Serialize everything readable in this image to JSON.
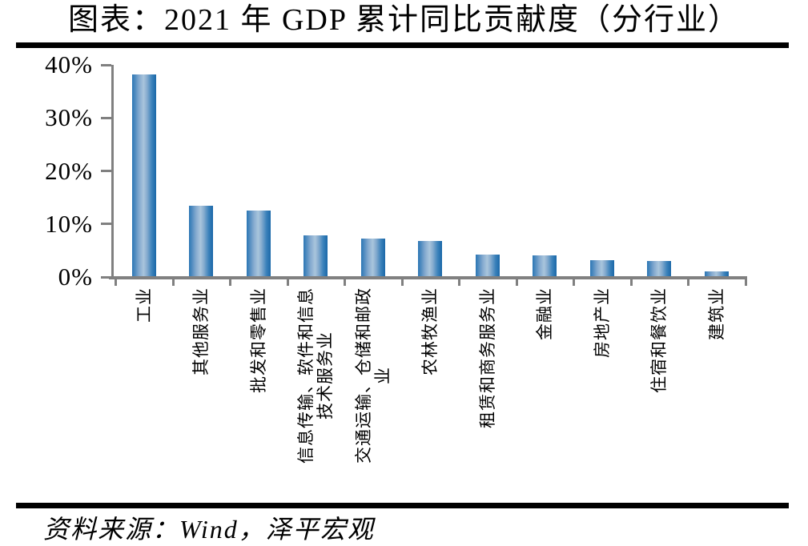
{
  "title": "图表：2021 年 GDP 累计同比贡献度（分行业）",
  "source": "资料来源：Wind，泽平宏观",
  "chart_data": {
    "type": "bar",
    "title": "图表：2021 年 GDP 累计同比贡献度（分行业）",
    "categories": [
      "工业",
      "其他服务业",
      "批发和零售业",
      "信息传输、软件和信息\n技术服务业",
      "交通运输、仓储和邮政\n业",
      "农林牧渔业",
      "租赁和商务服务业",
      "金融业",
      "房地产业",
      "住宿和餐饮业",
      "建筑业"
    ],
    "values": [
      38.0,
      13.3,
      12.4,
      7.7,
      7.1,
      6.7,
      4.1,
      3.9,
      3.0,
      2.9,
      0.9
    ],
    "unit": "%",
    "xlabel": "",
    "ylabel": "",
    "ylim": [
      0,
      40
    ],
    "yticks": [
      "0%",
      "10%",
      "20%",
      "30%",
      "40%"
    ],
    "grid": false,
    "legend": false,
    "bar_color": "#2e77b5",
    "axis_color": "#808080",
    "source_note": "资料来源：Wind，泽平宏观"
  }
}
